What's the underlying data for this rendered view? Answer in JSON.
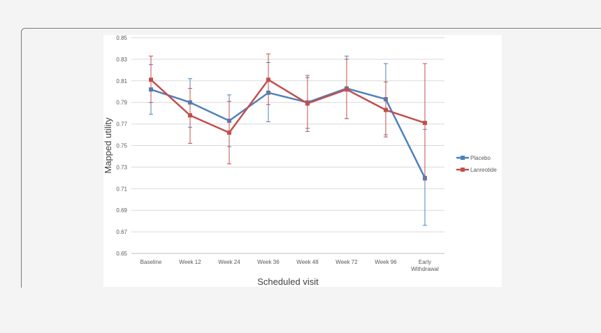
{
  "chart_data": {
    "type": "line",
    "xlabel": "Scheduled visit",
    "ylabel": "Mapped utility",
    "ylim": [
      0.65,
      0.85
    ],
    "yticks": [
      "0.65",
      "0.67",
      "0.69",
      "0.71",
      "0.73",
      "0.75",
      "0.77",
      "0.79",
      "0.81",
      "0.83",
      "0.85"
    ],
    "categories": [
      "Baseline",
      "Week 12",
      "Week 24",
      "Week 36",
      "Week 48",
      "Week 72",
      "Week 96",
      "Early Withdrawal"
    ],
    "category_lines": [
      [
        "Baseline"
      ],
      [
        "Week 12"
      ],
      [
        "Week 24"
      ],
      [
        "Week 36"
      ],
      [
        "Week 48"
      ],
      [
        "Week 72"
      ],
      [
        "Week 96"
      ],
      [
        "Early",
        "Withdrawal"
      ]
    ],
    "grid": true,
    "legend": "right",
    "series": [
      {
        "name": "Placebo",
        "color": "#4f81bd",
        "values": [
          0.802,
          0.79,
          0.773,
          0.799,
          0.79,
          0.803,
          0.793,
          0.72
        ],
        "err_low": [
          0.779,
          0.767,
          0.749,
          0.772,
          0.766,
          0.775,
          0.76,
          0.676
        ],
        "err_high": [
          0.825,
          0.812,
          0.797,
          0.827,
          0.813,
          0.833,
          0.826,
          0.765
        ]
      },
      {
        "name": "Lanreotide",
        "color": "#c0504d",
        "values": [
          0.811,
          0.778,
          0.762,
          0.811,
          0.789,
          0.802,
          0.783,
          0.771
        ],
        "err_low": [
          0.79,
          0.752,
          0.733,
          0.788,
          0.763,
          0.775,
          0.758,
          0.718
        ],
        "err_high": [
          0.833,
          0.803,
          0.791,
          0.835,
          0.815,
          0.83,
          0.809,
          0.826
        ]
      }
    ]
  }
}
